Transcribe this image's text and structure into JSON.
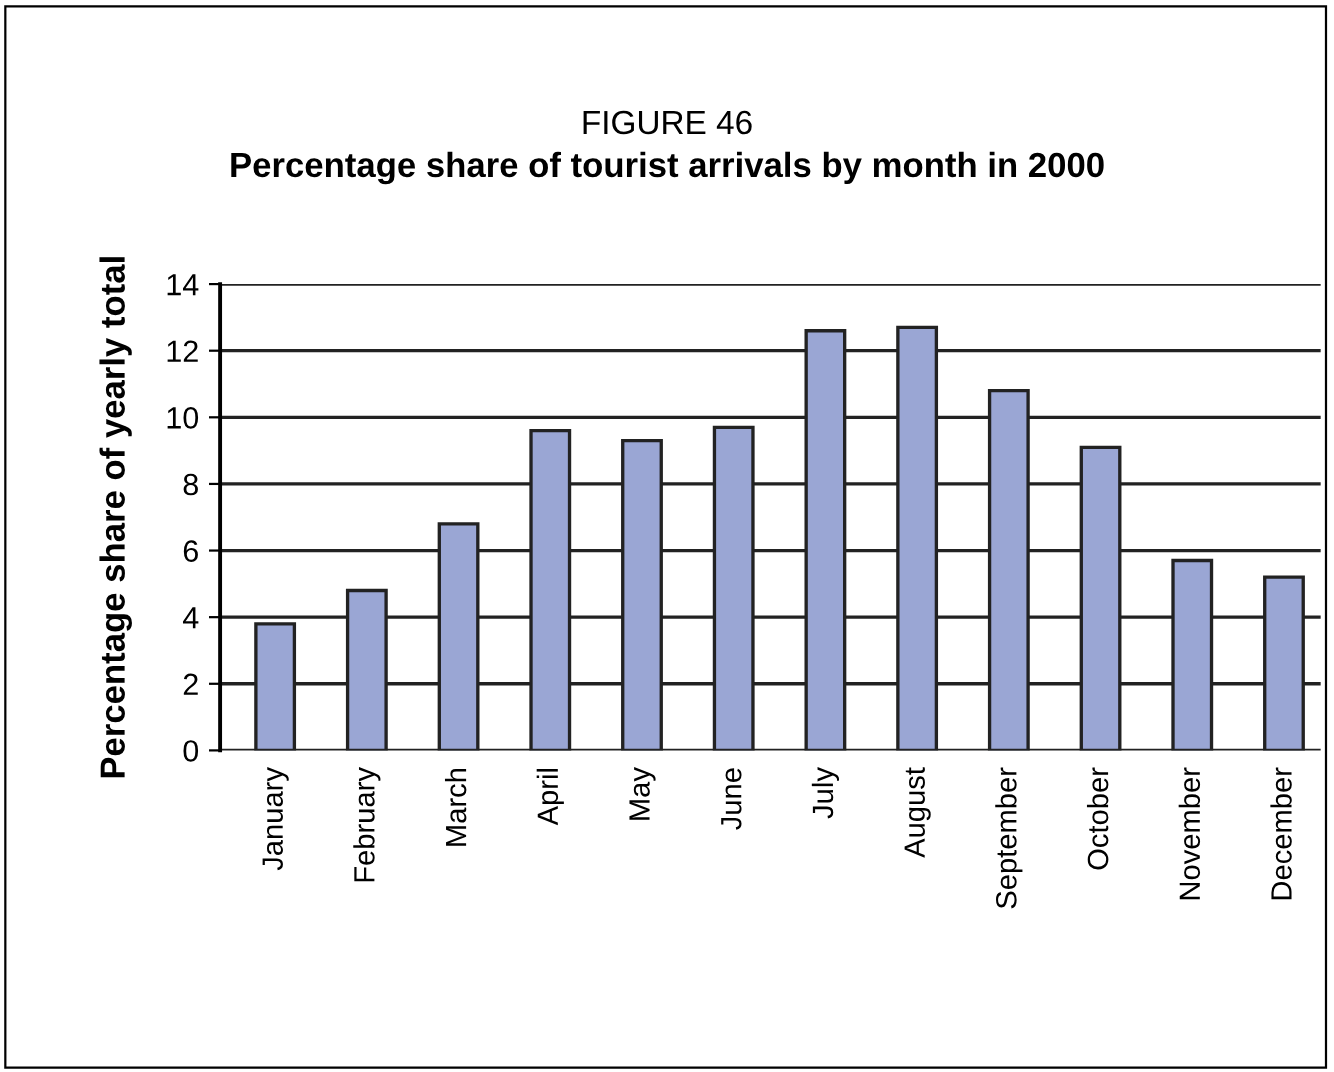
{
  "chart_data": {
    "type": "bar",
    "title": "FIGURE 46",
    "subtitle": "Percentage share of tourist arrivals by month in 2000",
    "ylabel": "Percentage share of yearly total",
    "categories": [
      "January",
      "February",
      "March",
      "April",
      "May",
      "June",
      "July",
      "August",
      "September",
      "October",
      "November",
      "December"
    ],
    "values": [
      3.8,
      4.8,
      6.8,
      9.6,
      9.3,
      9.7,
      12.6,
      12.7,
      10.8,
      9.1,
      5.7,
      5.2
    ],
    "color": "#9aa6d4",
    "ylim": [
      0,
      14
    ],
    "yticks": [
      0,
      2,
      4,
      6,
      8,
      10,
      12,
      14
    ],
    "grid": "y"
  }
}
